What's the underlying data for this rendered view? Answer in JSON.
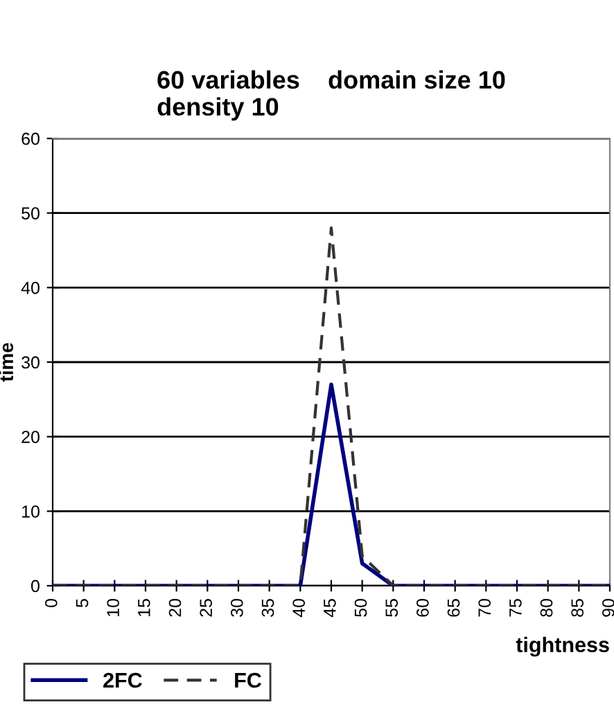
{
  "chart_data": {
    "type": "line",
    "title": "60 variables    domain size 10\ndensity 10",
    "xlabel": "tightness",
    "ylabel": "time",
    "categories": [
      "0",
      "5",
      "10",
      "15",
      "20",
      "25",
      "30",
      "35",
      "40",
      "45",
      "50",
      "55",
      "60",
      "65",
      "70",
      "75",
      "80",
      "85",
      "90"
    ],
    "series": [
      {
        "name": "2FC",
        "color": "#000080",
        "line_style": "solid",
        "values": [
          0,
          0,
          0,
          0,
          0,
          0,
          0,
          0,
          0,
          27,
          3,
          0,
          0,
          0,
          0,
          0,
          0,
          0,
          0
        ]
      },
      {
        "name": "FC",
        "color": "#333333",
        "line_style": "dashed",
        "values": [
          0,
          0,
          0,
          0,
          0,
          0,
          0,
          0,
          0,
          48,
          4,
          0,
          0,
          0,
          0,
          0,
          0,
          0,
          0
        ]
      }
    ],
    "ylim": [
      0,
      60
    ],
    "yticks": [
      0,
      10,
      20,
      30,
      40,
      50,
      60
    ],
    "grid": "y",
    "legend": "bottom left",
    "marker": "none"
  }
}
